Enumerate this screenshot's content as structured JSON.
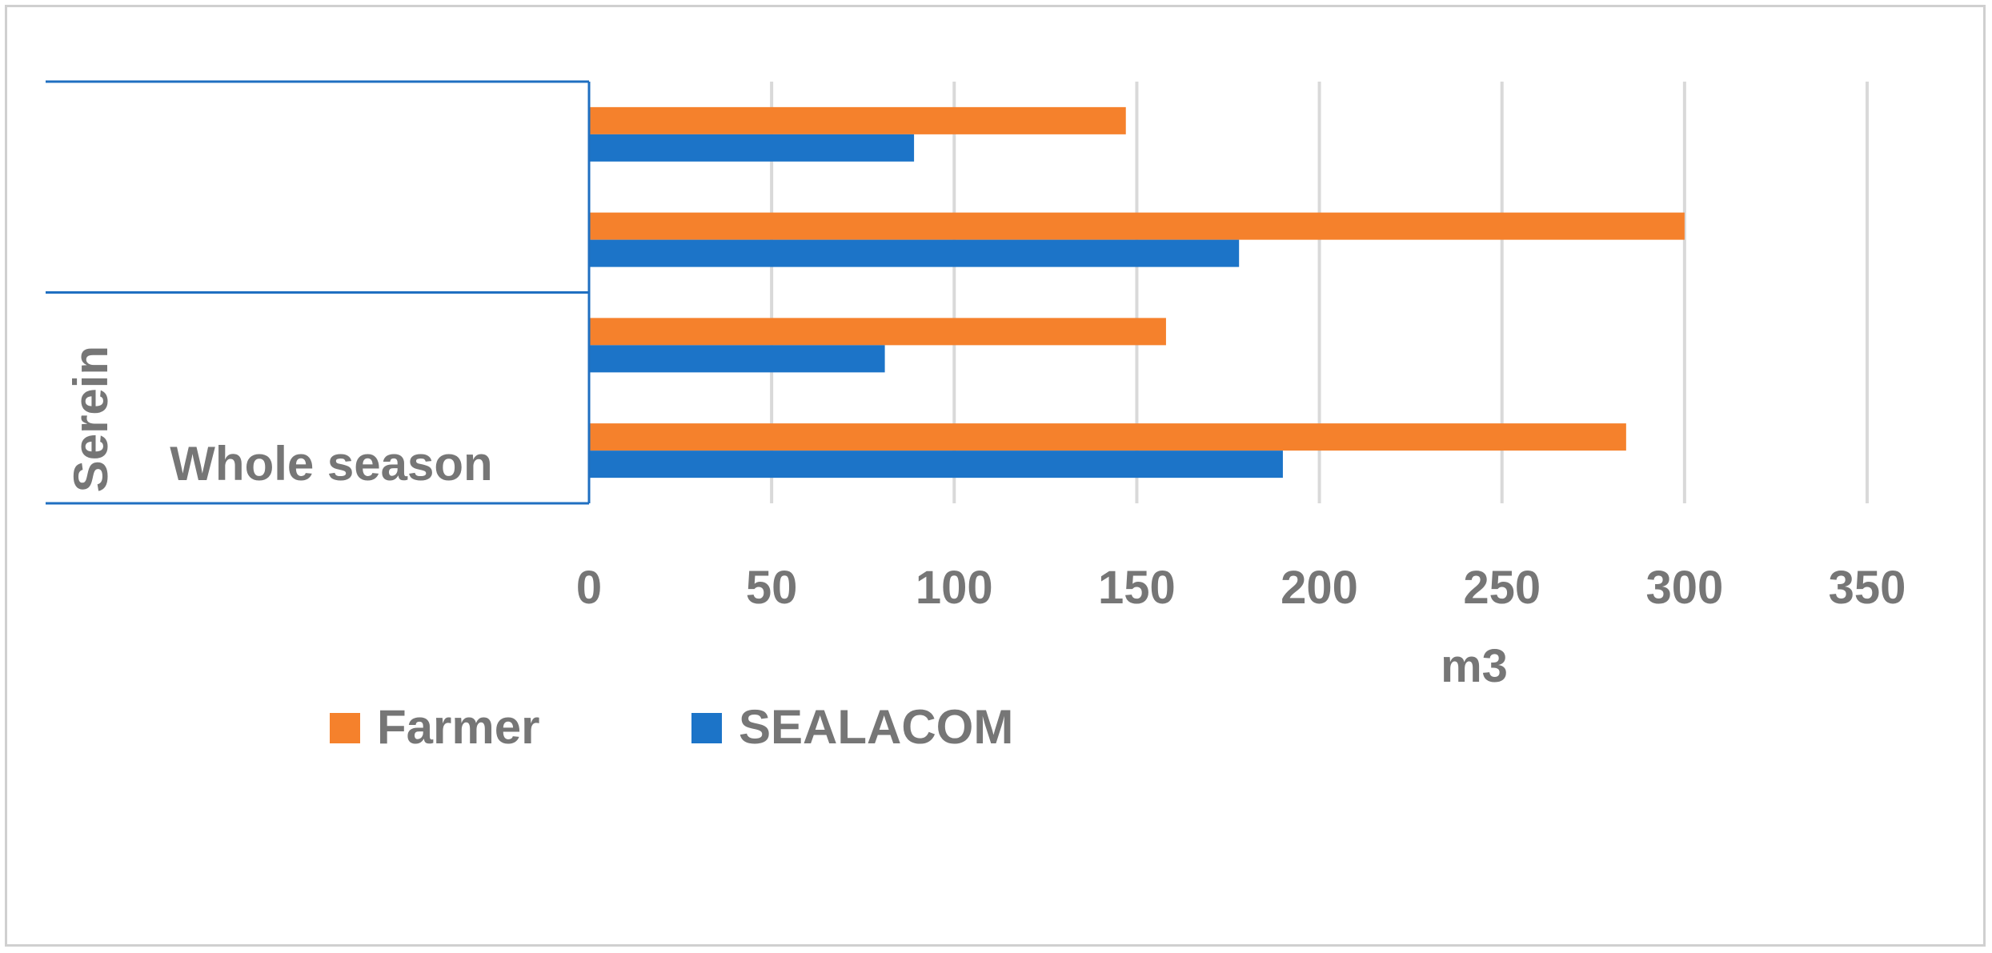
{
  "chart_data": {
    "type": "bar",
    "orientation": "horizontal",
    "title": "",
    "xlabel": "m3",
    "ylabel": "",
    "xlim": [
      0,
      350
    ],
    "xticks": [
      0,
      50,
      100,
      150,
      200,
      250,
      300,
      350
    ],
    "grid": true,
    "legend_position": "bottom-left",
    "groups": [
      {
        "label": "",
        "rows": [
          0,
          1
        ]
      },
      {
        "label": "Serein",
        "rows": [
          2,
          3
        ]
      }
    ],
    "categories": [
      "",
      "",
      "",
      "Whole season"
    ],
    "series": [
      {
        "name": "Farmer",
        "color": "#f5812c",
        "values": [
          147,
          300,
          158,
          284
        ]
      },
      {
        "name": "SEALACOM",
        "color": "#1c74c8",
        "values": [
          89,
          178,
          81,
          190
        ]
      }
    ]
  }
}
